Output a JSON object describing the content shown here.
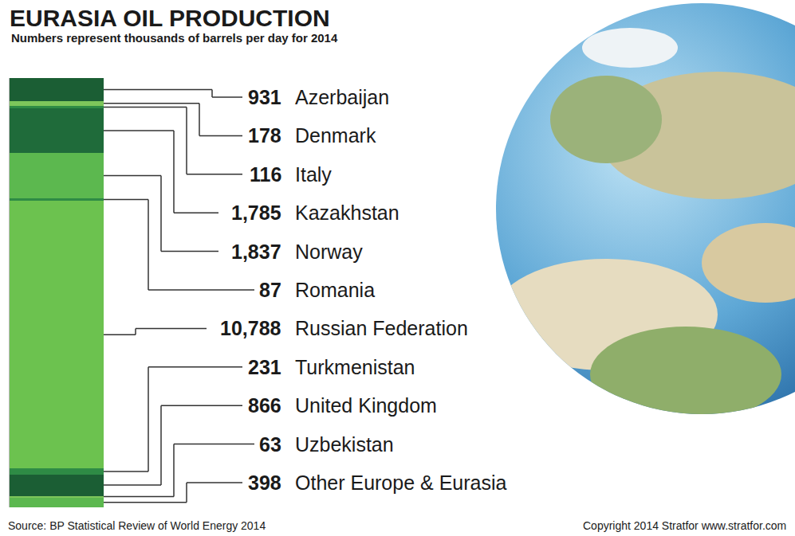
{
  "chart_data": {
    "type": "bar",
    "title": "EURASIA OIL PRODUCTION",
    "subtitle": "Numbers represent thousands of barrels per day for 2014",
    "source": "Source: BP Statistical Review of World Energy 2014",
    "copyright": "Copyright 2014 Stratfor www.stratfor.com",
    "categories": [
      null
    ],
    "series": [
      {
        "name": "Azerbaijan",
        "color": "#1b5e34",
        "values": [
          931
        ],
        "value_labels": [
          "931"
        ]
      },
      {
        "name": "Denmark",
        "color": "#7dc65b",
        "values": [
          178
        ],
        "value_labels": [
          "178"
        ]
      },
      {
        "name": "Italy",
        "color": "#2e8b45",
        "values": [
          116
        ],
        "value_labels": [
          "116"
        ]
      },
      {
        "name": "Kazakhstan",
        "color": "#1f6b3a",
        "values": [
          1785
        ],
        "value_labels": [
          "1,785"
        ]
      },
      {
        "name": "Norway",
        "color": "#5cb84f",
        "values": [
          1837
        ],
        "value_labels": [
          "1,837"
        ]
      },
      {
        "name": "Romania",
        "color": "#2e8b45",
        "values": [
          87
        ],
        "value_labels": [
          "87"
        ]
      },
      {
        "name": "Russian Federation",
        "color": "#6cc24f",
        "values": [
          10788
        ],
        "value_labels": [
          "10,788"
        ]
      },
      {
        "name": "Turkmenistan",
        "color": "#2e8b45",
        "values": [
          231
        ],
        "value_labels": [
          "231"
        ]
      },
      {
        "name": "United Kingdom",
        "color": "#1b5e34",
        "values": [
          866
        ],
        "value_labels": [
          "866"
        ]
      },
      {
        "name": "Uzbekistan",
        "color": "#7dc65b",
        "values": [
          63
        ],
        "value_labels": [
          "63"
        ]
      },
      {
        "name": "Other Europe & Eurasia",
        "color": "#5cb84f",
        "values": [
          398
        ],
        "value_labels": [
          "398"
        ]
      }
    ],
    "stacked": true,
    "data_labels": true,
    "tick_labels": false,
    "grid": false,
    "ylim": [
      0,
      17280
    ],
    "yticks": []
  }
}
